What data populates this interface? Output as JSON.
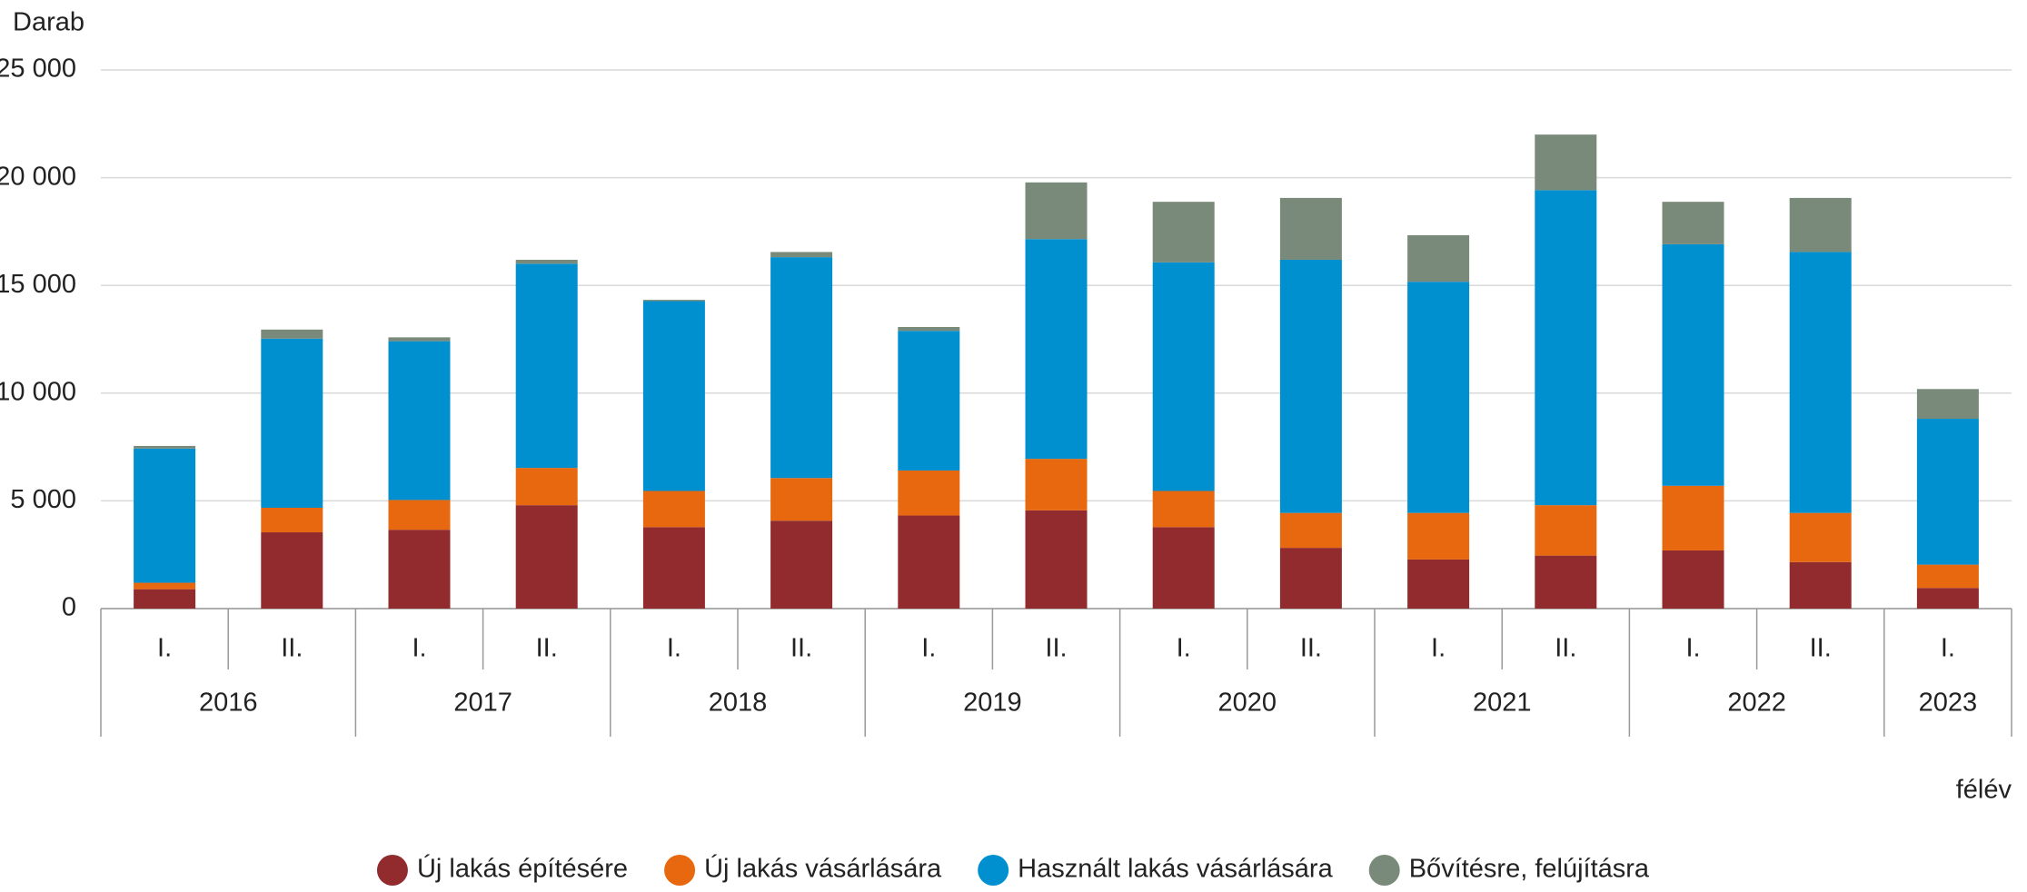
{
  "chart_data": {
    "type": "stacked_bar",
    "y_label": "Darab",
    "x_label": "félév",
    "groups": [
      {
        "name": "2016",
        "categories": [
          "I.",
          "II."
        ]
      },
      {
        "name": "2017",
        "categories": [
          "I.",
          "II."
        ]
      },
      {
        "name": "2018",
        "categories": [
          "I.",
          "II."
        ]
      },
      {
        "name": "2019",
        "categories": [
          "I.",
          "II."
        ]
      },
      {
        "name": "2020",
        "categories": [
          "I.",
          "II."
        ]
      },
      {
        "name": "2021",
        "categories": [
          "I.",
          "II."
        ]
      },
      {
        "name": "2022",
        "categories": [
          "I.",
          "II."
        ]
      },
      {
        "name": "2023",
        "categories": [
          "I."
        ]
      }
    ],
    "series": [
      {
        "name": "Új lakás építésére",
        "color": "#922b2e",
        "values": [
          900,
          3540,
          3660,
          4800,
          3780,
          4080,
          4320,
          4560,
          3780,
          2820,
          2280,
          2460,
          2700,
          2160,
          960
        ]
      },
      {
        "name": "Új lakás vásárlására",
        "color": "#e8680f",
        "values": [
          300,
          1140,
          1380,
          1730,
          1680,
          1980,
          2090,
          2390,
          1680,
          1620,
          2160,
          2340,
          3000,
          2280,
          1080
        ]
      },
      {
        "name": "Használt lakás vásárlására",
        "color": "#0090cf",
        "values": [
          6230,
          7850,
          7370,
          9480,
          8810,
          10250,
          6480,
          10200,
          10610,
          11750,
          10730,
          14620,
          11210,
          12110,
          6770
        ]
      },
      {
        "name": "Bővítésre, felújításra",
        "color": "#7a8a7a",
        "values": [
          120,
          420,
          180,
          180,
          60,
          240,
          180,
          2630,
          2810,
          2870,
          2160,
          2580,
          1970,
          2510,
          1380
        ]
      }
    ],
    "ylim": [
      0,
      25000
    ],
    "yticks": [
      0,
      {
        "value": 5000,
        "label": "5 000"
      },
      {
        "value": 10000,
        "label": "10 000"
      },
      {
        "value": 15000,
        "label": "15 000"
      },
      {
        "value": 20000,
        "label": "20 000"
      },
      {
        "value": 25000,
        "label": "25 000"
      }
    ],
    "grid": true
  }
}
